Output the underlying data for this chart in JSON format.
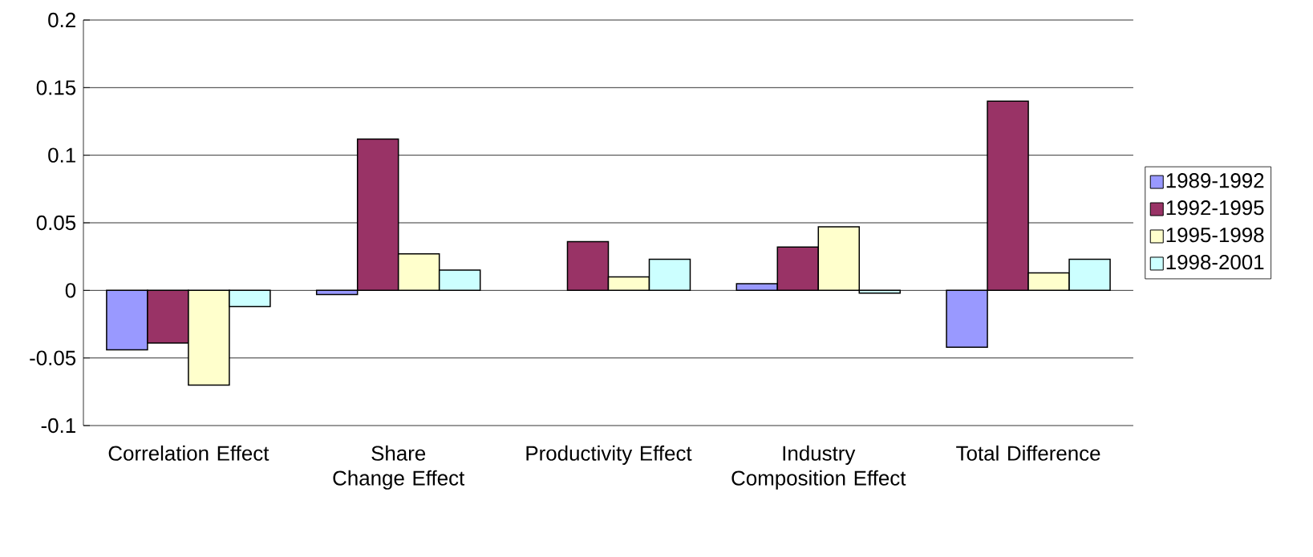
{
  "chart_data": {
    "type": "bar",
    "categories": [
      "Correlation Effect",
      "Share Change Effect",
      "Productivity Effect",
      "Industry Composition Effect",
      "Total Difference"
    ],
    "series": [
      {
        "name": "1989-1992",
        "color": "#9999ff",
        "values": [
          -0.044,
          -0.003,
          null,
          0.005,
          -0.042
        ]
      },
      {
        "name": "1992-1995",
        "color": "#993366",
        "values": [
          -0.039,
          0.112,
          0.036,
          0.032,
          0.14
        ]
      },
      {
        "name": "1995-1998",
        "color": "#ffffcc",
        "values": [
          -0.07,
          0.027,
          0.01,
          0.047,
          0.013
        ]
      },
      {
        "name": "1998-2001",
        "color": "#ccffff",
        "values": [
          -0.012,
          0.015,
          0.023,
          -0.002,
          0.023
        ]
      }
    ],
    "ylim": [
      -0.1,
      0.2
    ],
    "yticks": [
      -0.1,
      -0.05,
      0,
      0.05,
      0.1,
      0.15,
      0.2
    ],
    "grid": "y",
    "legend": "right"
  }
}
